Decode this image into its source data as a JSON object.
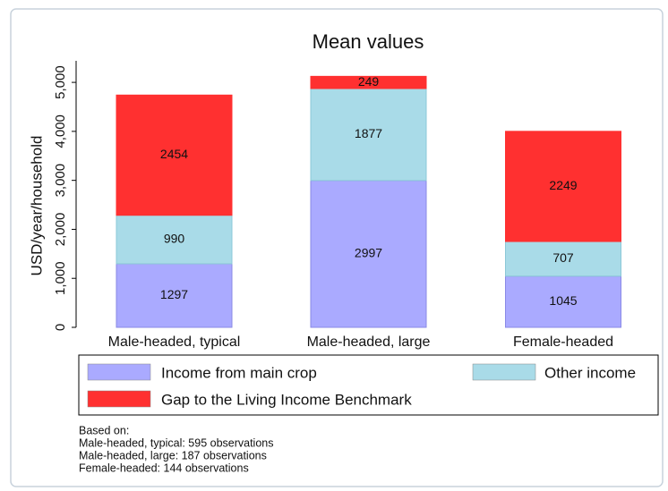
{
  "chart_data": {
    "type": "stacked_bar",
    "title": "Mean values",
    "y_label": "USD/year/household",
    "categories": [
      "Male-headed, typical",
      "Male-headed, large",
      "Female-headed"
    ],
    "series": [
      {
        "name": "Income from main crop",
        "color": "#aaaaff",
        "values": [
          1297,
          2997,
          1045
        ]
      },
      {
        "name": "Other income",
        "color": "#a9dbe8",
        "values": [
          990,
          1877,
          707
        ]
      },
      {
        "name": "Gap to the Living Income Benchmark",
        "color": "#ff3030",
        "values": [
          2454,
          249,
          2249
        ]
      }
    ],
    "ylim": [
      0,
      5440
    ],
    "yticks": [
      0,
      {
        "value": 1000,
        "label": "1,000"
      },
      {
        "value": 2000,
        "label": "2,000"
      },
      {
        "value": 3000,
        "label": "3,000"
      },
      {
        "value": 4000,
        "label": "4,000"
      },
      {
        "value": 5000,
        "label": "5,000"
      }
    ],
    "note": [
      "Based on:",
      "Male-headed, typical: 595 observations",
      "Male-headed, large: 187 observations",
      "Female-headed: 144 observations"
    ]
  }
}
